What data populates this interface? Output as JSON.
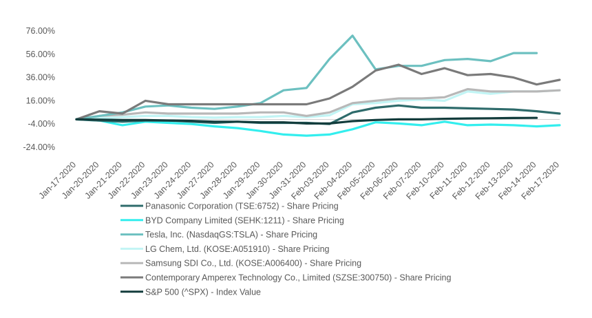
{
  "chart_data": {
    "type": "line",
    "title": "",
    "xlabel": "",
    "ylabel": "",
    "ylim": [
      -24,
      76
    ],
    "y_ticks": [
      -24,
      -4,
      16,
      36,
      56,
      76
    ],
    "y_tick_labels": [
      "-24.00%",
      "-4.00%",
      "16.00%",
      "36.00%",
      "56.00%",
      "76.00%"
    ],
    "grid": false,
    "legend_position": "bottom",
    "categories": [
      "Jan-17-2020",
      "Jan-20-2020",
      "Jan-21-2020",
      "Jan-22-2020",
      "Jan-23-2020",
      "Jan-24-2020",
      "Jan-27-2020",
      "Jan-28-2020",
      "Jan-29-2020",
      "Jan-30-2020",
      "Jan-31-2020",
      "Feb-03-2020",
      "Feb-04-2020",
      "Feb-05-2020",
      "Feb-06-2020",
      "Feb-07-2020",
      "Feb-10-2020",
      "Feb-11-2020",
      "Feb-12-2020",
      "Feb-13-2020",
      "Feb-14-2020",
      "Feb-17-2020"
    ],
    "series": [
      {
        "name": "Panasonic Corporation (TSE:6752) - Share Pricing",
        "color": "#2e6b6b",
        "values": [
          0,
          -1,
          -2,
          -1,
          -1,
          -2,
          -3,
          -2,
          -3,
          -3,
          -3,
          -4,
          6,
          10,
          12,
          10,
          10,
          9.5,
          9,
          8.5,
          7,
          5
        ]
      },
      {
        "name": "BYD Company Limited (SEHK:1211) - Share Pricing",
        "color": "#33eeee",
        "values": [
          0,
          -1,
          -5,
          -2,
          -3,
          -4,
          -6,
          -7.5,
          -10,
          -13,
          -14,
          -13,
          -8.5,
          -2.5,
          -3.5,
          -5,
          -2,
          -5,
          -4.5,
          -5,
          -6,
          -5
        ]
      },
      {
        "name": "Tesla, Inc. (NasdaqGS:TSLA) - Share Pricing",
        "color": "#6cc0c0",
        "values": [
          0,
          3,
          6,
          11,
          12,
          10,
          9,
          11,
          14,
          25,
          27,
          52,
          72,
          43,
          46,
          46,
          51,
          52,
          50,
          57,
          57,
          null
        ]
      },
      {
        "name": "LG Chem, Ltd. (KOSE:A051910) - Share Pricing",
        "color": "#c2f5f5",
        "values": [
          0,
          1,
          2,
          3,
          3,
          2,
          1.5,
          2,
          2,
          3,
          2,
          3.5,
          13,
          14,
          16,
          17,
          16,
          24,
          22,
          24,
          24,
          25
        ]
      },
      {
        "name": "Samsung SDI Co., Ltd. (KOSE:A006400) - Share Pricing",
        "color": "#b8b8b8",
        "values": [
          0,
          3,
          4,
          6,
          5,
          5,
          5,
          5,
          6,
          6,
          3,
          6,
          14,
          16,
          18,
          18,
          19,
          26,
          24,
          24,
          24,
          25
        ]
      },
      {
        "name": "Contemporary Amperex Technology Co., Limited (SZSE:300750) - Share Pricing",
        "color": "#7a7a7a",
        "values": [
          0,
          7,
          5,
          16,
          13,
          13,
          13,
          13,
          13,
          13,
          13,
          18,
          28,
          42,
          47,
          39,
          44,
          38,
          39,
          36,
          30,
          34
        ]
      },
      {
        "name": "S&P 500 (^SPX) - Index Value",
        "color": "#123c3c",
        "values": [
          0,
          -0.3,
          -0.5,
          -0.5,
          -1,
          -1.3,
          -2,
          -2,
          -2.5,
          -2.5,
          -3.5,
          -3.5,
          -1.5,
          -0.5,
          0,
          0,
          0.5,
          0.8,
          1,
          1.2,
          1.3,
          null
        ]
      }
    ]
  }
}
